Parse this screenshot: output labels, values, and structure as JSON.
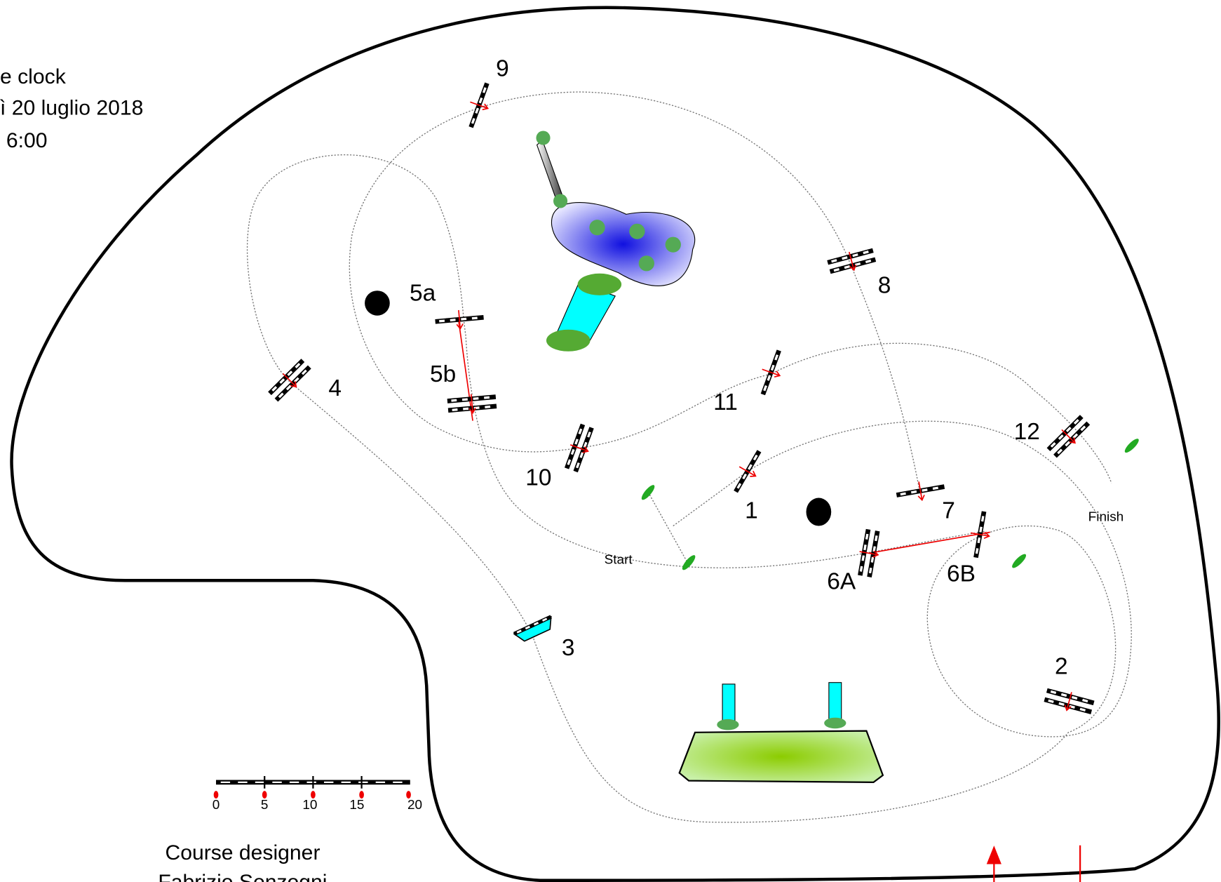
{
  "header": {
    "lines": [
      "e clock",
      "ì 20 luglio 2018",
      "6:00"
    ]
  },
  "obstacles": {
    "o1": "1",
    "o2": "2",
    "o3": "3",
    "o4": "4",
    "o5a": "5a",
    "o5b": "5b",
    "o6a": "6A",
    "o6b": "6B",
    "o7": "7",
    "o8": "8",
    "o9": "9",
    "o10": "10",
    "o11": "11",
    "o12": "12"
  },
  "markers": {
    "start": "Start",
    "finish": "Finish"
  },
  "scale": {
    "labels": [
      0,
      5,
      10,
      15,
      20
    ]
  },
  "footer": {
    "role": "Course designer",
    "name": "Fabrizio Sonzogni"
  }
}
